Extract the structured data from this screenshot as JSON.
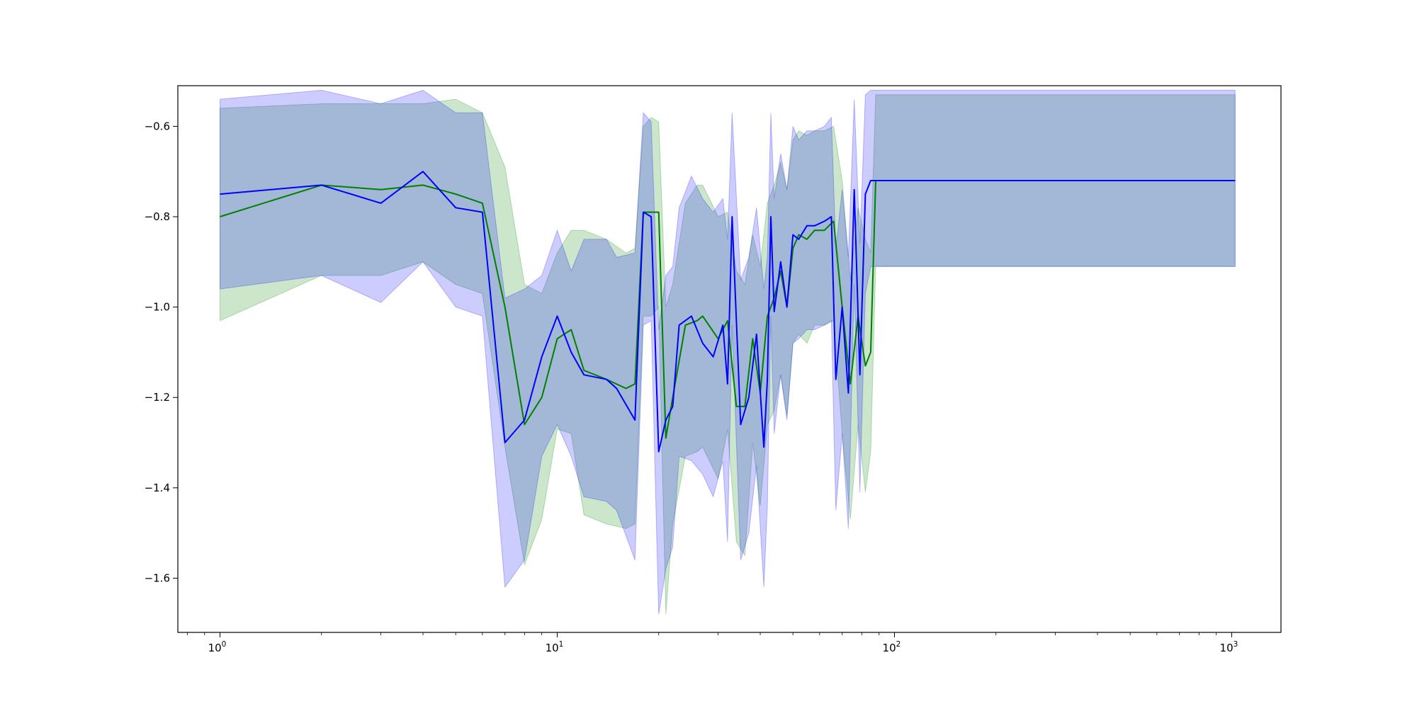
{
  "chart_data": {
    "type": "line",
    "title": "",
    "xlabel": "",
    "ylabel": "",
    "x_scale": "log",
    "xlim": [
      0.75,
      1400
    ],
    "ylim": [
      -1.72,
      -0.51
    ],
    "grid": false,
    "legend": "none",
    "x_ticks": [
      {
        "value": 1,
        "base": "10",
        "exp": "0"
      },
      {
        "value": 10,
        "base": "10",
        "exp": "1"
      },
      {
        "value": 100,
        "base": "10",
        "exp": "2"
      },
      {
        "value": 1000,
        "base": "10",
        "exp": "3"
      }
    ],
    "y_ticks": [
      {
        "value": -0.6,
        "label": "−0.6"
      },
      {
        "value": -0.8,
        "label": "−0.8"
      },
      {
        "value": -1.0,
        "label": "−1.0"
      },
      {
        "value": -1.2,
        "label": "−1.2"
      },
      {
        "value": -1.4,
        "label": "−1.4"
      },
      {
        "value": -1.6,
        "label": "−1.6"
      }
    ],
    "series": [
      {
        "color": "#008000",
        "fill_color": "#008000",
        "fill_opacity": 0.2,
        "x": [
          1,
          2,
          3,
          4,
          5,
          6,
          7,
          8,
          9,
          10,
          11,
          12,
          14,
          16,
          17,
          18,
          19,
          20,
          21,
          22,
          24,
          26,
          27,
          30,
          32,
          34,
          36,
          38,
          40,
          42,
          44,
          46,
          48,
          50,
          52,
          55,
          58,
          62,
          66,
          70,
          74,
          78,
          82,
          85,
          88,
          1024
        ],
        "y": [
          -0.8,
          -0.73,
          -0.74,
          -0.73,
          -0.75,
          -0.77,
          -1.0,
          -1.26,
          -1.2,
          -1.07,
          -1.05,
          -1.14,
          -1.16,
          -1.18,
          -1.17,
          -0.79,
          -0.79,
          -0.79,
          -1.29,
          -1.2,
          -1.04,
          -1.03,
          -1.02,
          -1.07,
          -1.03,
          -1.22,
          -1.22,
          -1.07,
          -1.19,
          -1.02,
          -0.98,
          -0.92,
          -1.0,
          -0.87,
          -0.84,
          -0.85,
          -0.83,
          -0.83,
          -0.81,
          -1.0,
          -1.17,
          -1.02,
          -1.13,
          -1.1,
          -0.72,
          -0.72
        ],
        "upper": [
          -0.56,
          -0.55,
          -0.55,
          -0.55,
          -0.54,
          -0.57,
          -0.69,
          -0.95,
          -0.97,
          -0.88,
          -0.83,
          -0.83,
          -0.85,
          -0.88,
          -0.87,
          -0.6,
          -0.58,
          -0.59,
          -1.0,
          -0.95,
          -0.77,
          -0.73,
          -0.73,
          -0.8,
          -0.79,
          -0.92,
          -0.95,
          -0.84,
          -0.91,
          -0.77,
          -0.73,
          -0.68,
          -0.74,
          -0.63,
          -0.61,
          -0.62,
          -0.61,
          -0.61,
          -0.6,
          -0.72,
          -0.94,
          -0.78,
          -0.85,
          -0.88,
          -0.53,
          -0.53
        ],
        "lower": [
          -1.03,
          -0.93,
          -0.93,
          -0.9,
          -0.95,
          -0.97,
          -1.31,
          -1.57,
          -1.47,
          -1.27,
          -1.28,
          -1.46,
          -1.48,
          -1.49,
          -1.48,
          -1.02,
          -1.02,
          -1.0,
          -1.68,
          -1.48,
          -1.33,
          -1.32,
          -1.31,
          -1.38,
          -1.27,
          -1.52,
          -1.55,
          -1.3,
          -1.44,
          -1.26,
          -1.23,
          -1.15,
          -1.24,
          -1.08,
          -1.06,
          -1.08,
          -1.04,
          -1.04,
          -1.03,
          -1.28,
          -1.47,
          -1.26,
          -1.41,
          -1.32,
          -0.91,
          -0.91
        ]
      },
      {
        "color": "#0000ff",
        "fill_color": "#0000ff",
        "fill_opacity": 0.2,
        "x": [
          1,
          2,
          3,
          4,
          5,
          6,
          7,
          8,
          9,
          10,
          11,
          12,
          14,
          15,
          17,
          18,
          19,
          20,
          21,
          22,
          23,
          25,
          27,
          29,
          31,
          32,
          33,
          35,
          37,
          39,
          41,
          42,
          43,
          44,
          46,
          48,
          50,
          52,
          55,
          58,
          62,
          65,
          67,
          70,
          73,
          76,
          79,
          82,
          85,
          88,
          1024
        ],
        "y": [
          -0.75,
          -0.73,
          -0.77,
          -0.7,
          -0.78,
          -0.79,
          -1.3,
          -1.25,
          -1.11,
          -1.02,
          -1.1,
          -1.15,
          -1.16,
          -1.18,
          -1.25,
          -0.79,
          -0.8,
          -1.32,
          -1.25,
          -1.22,
          -1.04,
          -1.02,
          -1.08,
          -1.11,
          -1.04,
          -1.17,
          -0.8,
          -1.26,
          -1.2,
          -1.06,
          -1.31,
          -1.16,
          -0.8,
          -1.01,
          -0.9,
          -1.0,
          -0.84,
          -0.85,
          -0.82,
          -0.82,
          -0.81,
          -0.8,
          -1.16,
          -1.0,
          -1.19,
          -0.74,
          -1.15,
          -0.75,
          -0.72,
          -0.72,
          -0.72
        ],
        "upper": [
          -0.54,
          -0.52,
          -0.55,
          -0.52,
          -0.57,
          -0.57,
          -0.98,
          -0.96,
          -0.93,
          -0.83,
          -0.92,
          -0.85,
          -0.85,
          -0.89,
          -0.88,
          -0.57,
          -0.59,
          -1.05,
          -0.93,
          -0.91,
          -0.78,
          -0.71,
          -0.76,
          -0.79,
          -0.76,
          -0.85,
          -0.57,
          -0.94,
          -0.89,
          -0.78,
          -0.96,
          -0.89,
          -0.57,
          -0.76,
          -0.66,
          -0.74,
          -0.6,
          -0.63,
          -0.61,
          -0.61,
          -0.6,
          -0.58,
          -0.87,
          -0.74,
          -0.89,
          -0.54,
          -0.86,
          -0.53,
          -0.52,
          -0.52,
          -0.52
        ],
        "lower": [
          -0.96,
          -0.93,
          -0.99,
          -0.9,
          -1.0,
          -1.02,
          -1.62,
          -1.56,
          -1.33,
          -1.26,
          -1.33,
          -1.42,
          -1.43,
          -1.45,
          -1.56,
          -1.04,
          -1.03,
          -1.68,
          -1.58,
          -1.53,
          -1.33,
          -1.34,
          -1.37,
          -1.42,
          -1.34,
          -1.52,
          -1.04,
          -1.56,
          -1.5,
          -1.35,
          -1.62,
          -1.44,
          -1.02,
          -1.28,
          -1.15,
          -1.25,
          -1.08,
          -1.07,
          -1.05,
          -1.05,
          -1.04,
          -1.03,
          -1.45,
          -1.28,
          -1.49,
          -0.95,
          -1.41,
          -0.97,
          -0.91,
          -0.91,
          -0.91
        ]
      }
    ]
  }
}
